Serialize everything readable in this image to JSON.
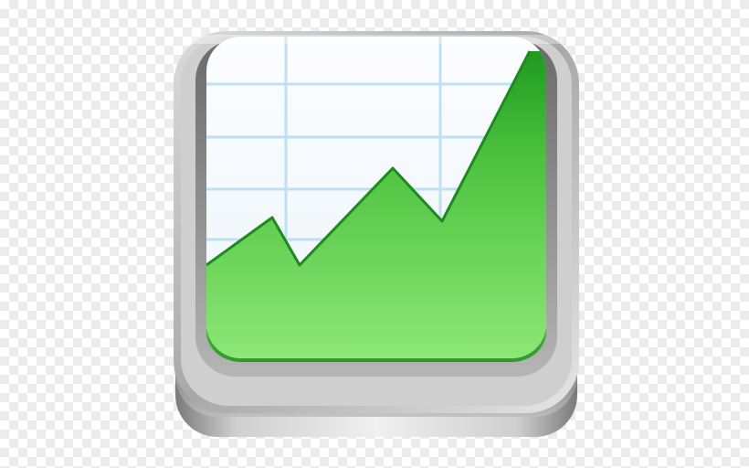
{
  "icon": {
    "name": "stock-chart-app-icon",
    "depicts": "chart-line-icon",
    "colors": {
      "frame_light": "#e8e8e8",
      "frame_dark": "#8a8a8a",
      "paper": "#f4f9fd",
      "grid": "#bfe0f2",
      "fill_top": "#2fa52f",
      "fill_bottom": "#8fe67a",
      "outline": "#1e8a1e"
    }
  }
}
